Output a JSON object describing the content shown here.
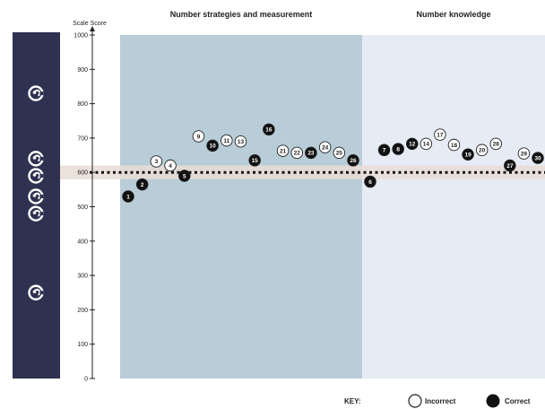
{
  "chart_data": {
    "type": "scatter",
    "ylabel": "Scale Score",
    "ylim": [
      0,
      1000
    ],
    "yticks": [
      0,
      100,
      200,
      300,
      400,
      500,
      600,
      700,
      800,
      900,
      1000
    ],
    "reference_line": 600,
    "reference_band": [
      580,
      620
    ],
    "sections": [
      {
        "title": "Number strategies and measurement",
        "color": "#b8cdd8"
      },
      {
        "title": "Number knowledge",
        "color": "#e6ebf5"
      }
    ],
    "markers": [
      {
        "icon": "koru-spiral-icon",
        "value": 830
      },
      {
        "icon": "koru-spiral-icon",
        "value": 640
      },
      {
        "icon": "koru-spiral-icon",
        "value": 590
      },
      {
        "icon": "koru-spiral-icon",
        "value": 530
      },
      {
        "icon": "koru-spiral-icon",
        "value": 480
      },
      {
        "icon": "koru-spiral-icon",
        "value": 250
      }
    ],
    "points": [
      {
        "label": "1",
        "section": 0,
        "y": 530,
        "correct": true
      },
      {
        "label": "2",
        "section": 0,
        "y": 565,
        "correct": true
      },
      {
        "label": "3",
        "section": 0,
        "y": 632,
        "correct": false
      },
      {
        "label": "4",
        "section": 0,
        "y": 620,
        "correct": false
      },
      {
        "label": "5",
        "section": 0,
        "y": 590,
        "correct": true
      },
      {
        "label": "9",
        "section": 0,
        "y": 705,
        "correct": false
      },
      {
        "label": "10",
        "section": 0,
        "y": 678,
        "correct": true
      },
      {
        "label": "11",
        "section": 0,
        "y": 693,
        "correct": false
      },
      {
        "label": "13",
        "section": 0,
        "y": 690,
        "correct": false
      },
      {
        "label": "15",
        "section": 0,
        "y": 635,
        "correct": true
      },
      {
        "label": "16",
        "section": 0,
        "y": 725,
        "correct": true
      },
      {
        "label": "21",
        "section": 0,
        "y": 663,
        "correct": false
      },
      {
        "label": "22",
        "section": 0,
        "y": 657,
        "correct": false
      },
      {
        "label": "23",
        "section": 0,
        "y": 657,
        "correct": true
      },
      {
        "label": "24",
        "section": 0,
        "y": 673,
        "correct": false
      },
      {
        "label": "25",
        "section": 0,
        "y": 657,
        "correct": false
      },
      {
        "label": "26",
        "section": 0,
        "y": 635,
        "correct": true
      },
      {
        "label": "6",
        "section": 1,
        "y": 573,
        "correct": true
      },
      {
        "label": "7",
        "section": 1,
        "y": 665,
        "correct": true
      },
      {
        "label": "8",
        "section": 1,
        "y": 668,
        "correct": true
      },
      {
        "label": "12",
        "section": 1,
        "y": 683,
        "correct": true
      },
      {
        "label": "14",
        "section": 1,
        "y": 683,
        "correct": false
      },
      {
        "label": "17",
        "section": 1,
        "y": 710,
        "correct": false
      },
      {
        "label": "18",
        "section": 1,
        "y": 680,
        "correct": false
      },
      {
        "label": "19",
        "section": 1,
        "y": 652,
        "correct": true
      },
      {
        "label": "20",
        "section": 1,
        "y": 665,
        "correct": false
      },
      {
        "label": "28",
        "section": 1,
        "y": 683,
        "correct": false
      },
      {
        "label": "27",
        "section": 1,
        "y": 620,
        "correct": true
      },
      {
        "label": "29",
        "section": 1,
        "y": 655,
        "correct": false
      },
      {
        "label": "30",
        "section": 1,
        "y": 642,
        "correct": true
      }
    ],
    "key": {
      "title": "KEY:",
      "incorrect_label": "Incorrect",
      "correct_label": "Correct"
    },
    "colors": {
      "sidebar": "#2f3150",
      "correct_fill": "#111111",
      "incorrect_fill": "#ffffff",
      "reference_band": "#e9ddd5"
    }
  }
}
